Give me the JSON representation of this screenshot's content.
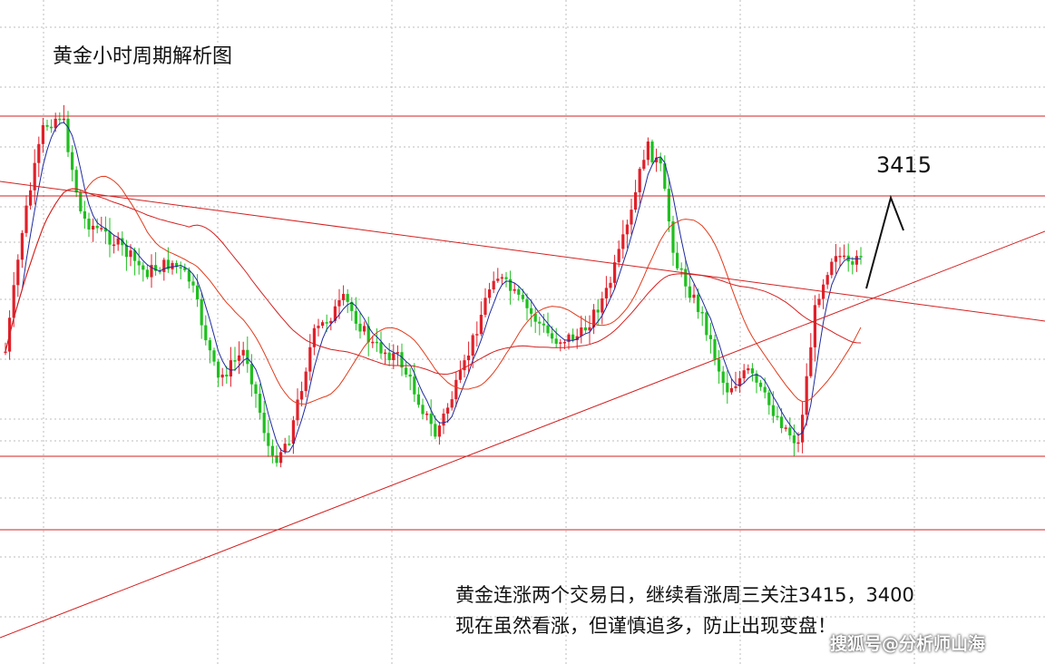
{
  "chart_data": {
    "type": "candlestick",
    "title": "黄金小时周期解析图",
    "grid": true,
    "colors": {
      "up": "#e0202a",
      "down": "#1fbf1f",
      "ma_short": "#1d2aa0",
      "ma_mid": "#e33b1b",
      "ma_long": "#d42020",
      "level": "#d42020",
      "trend": "#d42020",
      "projection": "#111111"
    },
    "projection_label": "3415",
    "annotations": [
      "黄金连涨两个交易日，继续看涨周三关注3415，3400",
      "现在虽然看涨，但谨慎追多，防止出现变盘！"
    ],
    "watermark": "搜狐号@分析师山海"
  }
}
